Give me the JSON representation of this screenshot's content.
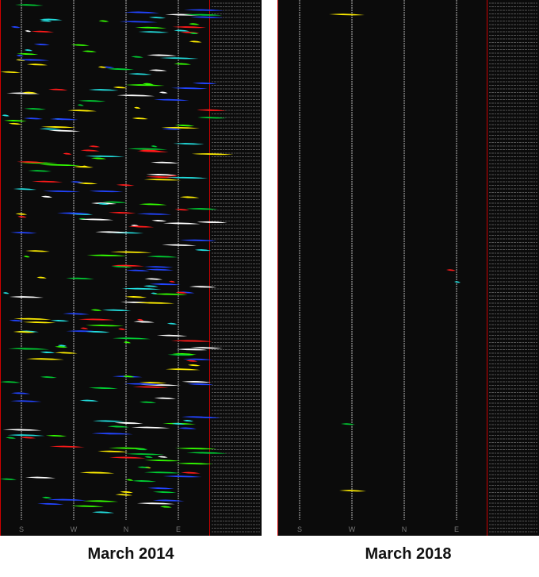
{
  "panels": [
    {
      "caption": "March 2014",
      "axis_labels": [
        "S",
        "W",
        "N",
        "E"
      ]
    },
    {
      "caption": "March 2018",
      "axis_labels": [
        "S",
        "W",
        "N",
        "E"
      ]
    }
  ]
}
